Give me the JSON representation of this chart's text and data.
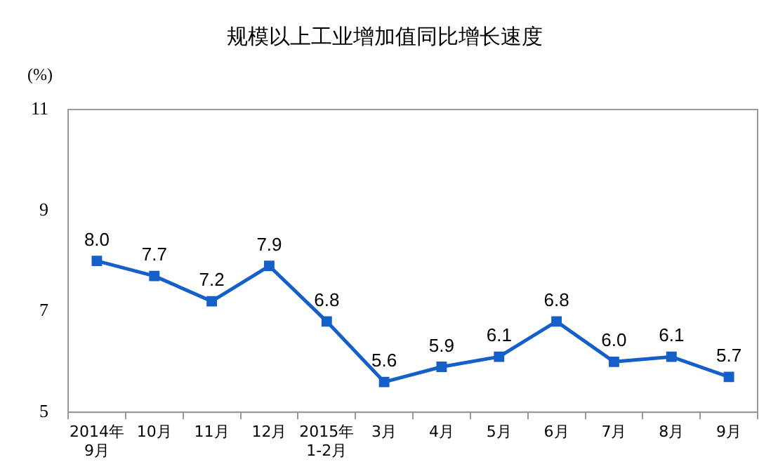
{
  "chart_data": {
    "type": "line",
    "title": "规模以上工业增加值同比增长速度",
    "ylabel": "(%)",
    "categories": [
      "2014年\n9月",
      "10月",
      "11月",
      "12月",
      "2015年\n1-2月",
      "3月",
      "4月",
      "5月",
      "6月",
      "7月",
      "8月",
      "9月"
    ],
    "series": [
      {
        "color": "#1560c8",
        "values": [
          8.0,
          7.7,
          7.2,
          7.9,
          6.8,
          5.6,
          5.9,
          6.1,
          6.8,
          6.0,
          6.1,
          5.7
        ],
        "value_labels": [
          "8.0",
          "7.7",
          "7.2",
          "7.9",
          "6.8",
          "5.6",
          "5.9",
          "6.1",
          "6.8",
          "6.0",
          "6.1",
          "5.7"
        ]
      }
    ],
    "ylim": [
      5,
      11
    ],
    "yticks": [
      5,
      7,
      9,
      11
    ],
    "grid": false,
    "legend": false,
    "marker": "square",
    "line_style": "solid"
  }
}
